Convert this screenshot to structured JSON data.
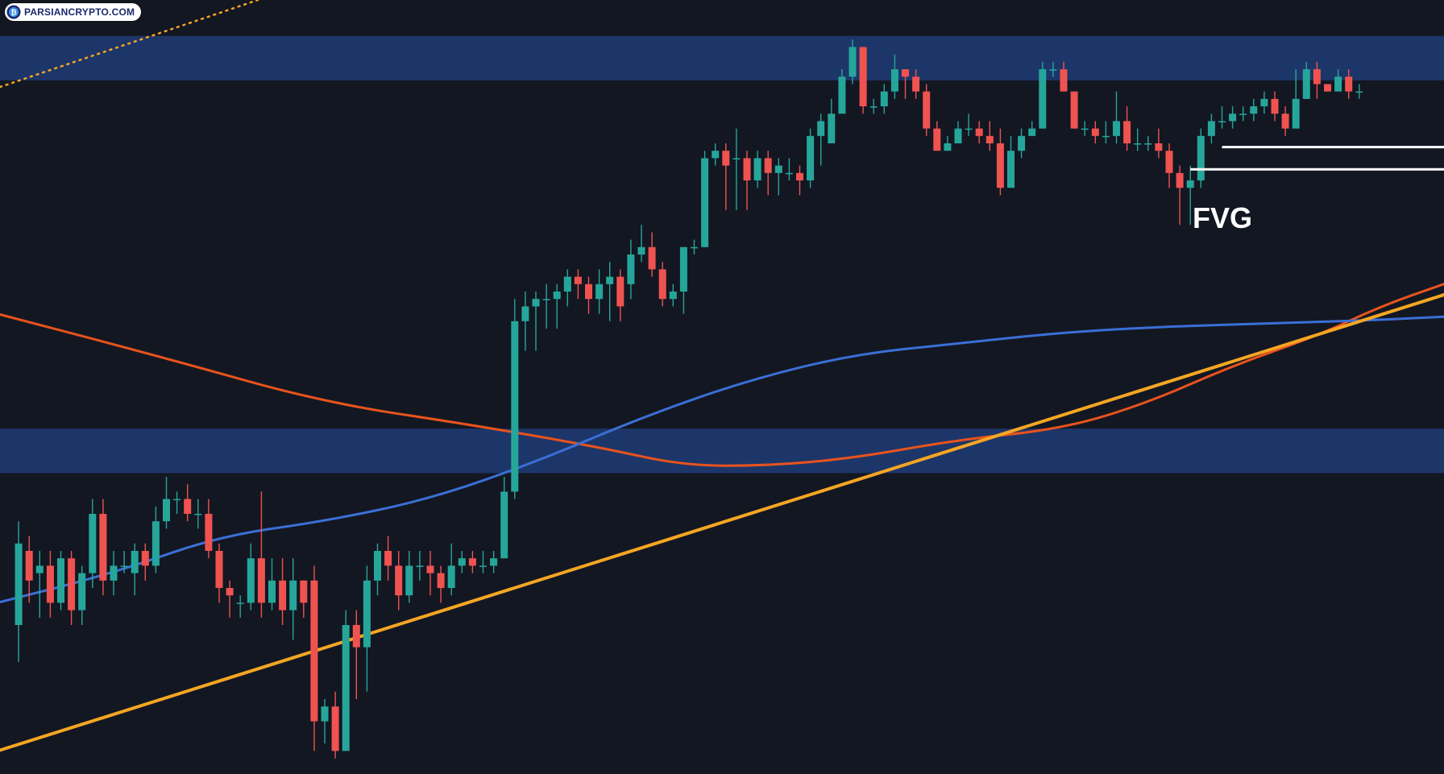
{
  "watermark": {
    "text": "PARSIANCRYPTO.COM"
  },
  "annotations": {
    "fvg_label": "FVG"
  },
  "colors": {
    "background": "#131722",
    "bull": "#26a69a",
    "bear": "#ef5350",
    "zone": "#1e3a70",
    "ema_blue": "#3b6fd6",
    "ema_red": "#e8531d",
    "trendline": "#f5a623",
    "fvg_lines": "#ffffff"
  },
  "chart_data": {
    "type": "candlestick",
    "title": "",
    "xlabel": "",
    "ylabel": "",
    "grid": false,
    "ylim": [
      0,
      100
    ],
    "candles": [
      [
        1,
        20,
        31,
        15,
        34
      ],
      [
        2,
        30,
        26,
        23,
        32
      ],
      [
        3,
        27,
        28,
        21,
        30
      ],
      [
        4,
        28,
        23,
        21,
        30
      ],
      [
        5,
        23,
        29,
        22,
        30
      ],
      [
        6,
        29,
        22,
        20,
        30
      ],
      [
        7,
        22,
        27,
        20,
        28
      ],
      [
        8,
        27,
        35,
        25,
        37
      ],
      [
        9,
        35,
        26,
        24,
        37
      ],
      [
        10,
        26,
        28,
        24,
        30
      ],
      [
        11,
        28,
        28,
        27,
        30
      ],
      [
        12,
        27,
        30,
        24,
        31
      ],
      [
        13,
        30,
        28,
        26,
        31
      ],
      [
        14,
        28,
        34,
        27,
        36
      ],
      [
        15,
        34,
        37,
        33,
        40
      ],
      [
        16,
        37,
        37,
        35,
        38
      ],
      [
        17,
        37,
        35,
        34,
        39
      ],
      [
        18,
        35,
        35,
        33,
        37
      ],
      [
        19,
        35,
        30,
        29,
        37
      ],
      [
        20,
        30,
        25,
        23,
        31
      ],
      [
        21,
        25,
        24,
        21,
        26
      ],
      [
        22,
        23,
        23,
        21,
        24
      ],
      [
        23,
        23,
        29,
        22,
        31
      ],
      [
        24,
        29,
        23,
        21,
        38
      ],
      [
        25,
        23,
        26,
        22,
        29
      ],
      [
        26,
        26,
        22,
        20,
        29
      ],
      [
        27,
        22,
        26,
        18,
        29
      ],
      [
        28,
        26,
        23,
        21,
        26
      ],
      [
        29,
        26,
        7,
        3,
        28
      ],
      [
        30,
        7,
        9,
        4,
        10
      ],
      [
        31,
        9,
        3,
        2,
        11
      ],
      [
        32,
        3,
        20,
        3,
        22
      ],
      [
        33,
        20,
        17,
        10,
        22
      ],
      [
        34,
        17,
        26,
        11,
        28
      ],
      [
        35,
        26,
        30,
        24,
        31
      ],
      [
        36,
        30,
        28,
        26,
        32
      ],
      [
        37,
        28,
        24,
        22,
        30
      ],
      [
        38,
        24,
        28,
        23,
        30
      ],
      [
        39,
        28,
        28,
        26,
        30
      ],
      [
        40,
        28,
        27,
        24,
        30
      ],
      [
        41,
        27,
        25,
        23,
        28
      ],
      [
        42,
        25,
        28,
        24,
        31
      ],
      [
        43,
        28,
        29,
        27,
        30
      ],
      [
        44,
        29,
        28,
        27,
        30
      ],
      [
        45,
        28,
        28,
        27,
        30
      ],
      [
        46,
        28,
        29,
        27,
        30
      ],
      [
        47,
        29,
        38,
        29,
        40
      ],
      [
        48,
        38,
        61,
        37,
        64
      ],
      [
        49,
        61,
        63,
        57,
        65
      ],
      [
        50,
        63,
        64,
        57,
        65
      ],
      [
        51,
        64,
        64,
        60,
        66
      ],
      [
        52,
        64,
        65,
        60,
        66
      ],
      [
        53,
        65,
        67,
        63,
        68
      ],
      [
        54,
        67,
        66,
        64,
        68
      ],
      [
        55,
        66,
        64,
        62,
        67
      ],
      [
        56,
        64,
        66,
        62,
        68
      ],
      [
        57,
        66,
        67,
        61,
        69
      ],
      [
        58,
        67,
        63,
        61,
        68
      ],
      [
        59,
        66,
        70,
        64,
        72
      ],
      [
        60,
        70,
        71,
        69,
        74
      ],
      [
        61,
        71,
        68,
        67,
        73
      ],
      [
        62,
        68,
        64,
        63,
        69
      ],
      [
        63,
        64,
        65,
        63,
        66
      ],
      [
        64,
        65,
        71,
        62,
        71
      ],
      [
        65,
        71,
        71,
        70,
        72
      ],
      [
        66,
        71,
        83,
        71,
        84
      ],
      [
        67,
        83,
        84,
        82,
        85
      ],
      [
        68,
        84,
        82,
        76,
        85
      ],
      [
        69,
        83,
        83,
        76,
        87
      ],
      [
        70,
        83,
        80,
        76,
        84
      ],
      [
        71,
        80,
        83,
        79,
        84
      ],
      [
        72,
        83,
        81,
        78,
        84
      ],
      [
        73,
        81,
        82,
        78,
        83
      ],
      [
        74,
        81,
        81,
        80,
        83
      ],
      [
        75,
        81,
        80,
        78,
        82
      ],
      [
        76,
        80,
        86,
        79,
        87
      ],
      [
        77,
        86,
        88,
        82,
        89
      ],
      [
        78,
        85,
        89,
        85,
        91
      ],
      [
        79,
        89,
        94,
        89,
        95
      ],
      [
        80,
        94,
        98,
        93,
        99
      ],
      [
        81,
        98,
        90,
        89,
        98
      ],
      [
        82,
        90,
        90,
        89,
        91
      ],
      [
        83,
        90,
        92,
        89,
        93
      ],
      [
        84,
        92,
        95,
        91,
        97
      ],
      [
        85,
        95,
        94,
        91,
        95
      ],
      [
        86,
        94,
        92,
        91,
        95
      ],
      [
        87,
        92,
        87,
        86,
        93
      ],
      [
        88,
        87,
        84,
        84,
        88
      ],
      [
        89,
        84,
        85,
        84,
        86
      ],
      [
        90,
        85,
        87,
        85,
        88
      ],
      [
        91,
        87,
        87,
        86,
        89
      ],
      [
        92,
        87,
        86,
        85,
        88
      ],
      [
        93,
        86,
        85,
        84,
        88
      ],
      [
        94,
        85,
        79,
        78,
        87
      ],
      [
        95,
        79,
        84,
        80,
        86
      ],
      [
        96,
        84,
        86,
        83,
        87
      ],
      [
        97,
        86,
        87,
        86,
        88
      ],
      [
        98,
        87,
        95,
        87,
        96
      ],
      [
        99,
        95,
        95,
        94,
        96
      ],
      [
        100,
        95,
        92,
        92,
        96
      ],
      [
        101,
        92,
        87,
        87,
        92
      ],
      [
        102,
        87,
        87,
        86,
        88
      ],
      [
        103,
        87,
        86,
        85,
        88
      ],
      [
        104,
        86,
        86,
        85,
        88
      ],
      [
        105,
        86,
        88,
        85,
        92
      ],
      [
        106,
        88,
        85,
        84,
        90
      ],
      [
        107,
        85,
        85,
        84,
        87
      ],
      [
        108,
        85,
        85,
        84,
        86
      ],
      [
        109,
        85,
        84,
        83,
        87
      ],
      [
        110,
        84,
        81,
        79,
        85
      ],
      [
        111,
        81,
        79,
        74,
        82
      ],
      [
        112,
        79,
        80,
        74,
        82
      ],
      [
        113,
        80,
        86,
        79,
        87
      ],
      [
        114,
        86,
        88,
        85,
        89
      ],
      [
        115,
        88,
        88,
        87,
        90
      ],
      [
        116,
        88,
        89,
        87,
        90
      ],
      [
        117,
        89,
        89,
        88,
        90
      ],
      [
        118,
        89,
        90,
        88,
        91
      ],
      [
        119,
        90,
        91,
        89,
        92
      ],
      [
        120,
        91,
        89,
        88,
        92
      ],
      [
        121,
        89,
        87,
        86,
        90
      ],
      [
        122,
        87,
        91,
        87,
        95
      ],
      [
        123,
        91,
        95,
        91,
        96
      ],
      [
        124,
        95,
        93,
        91,
        96
      ],
      [
        125,
        93,
        92,
        92,
        93
      ],
      [
        126,
        92,
        94,
        92,
        95
      ],
      [
        127,
        94,
        92,
        91,
        95
      ],
      [
        128,
        92,
        92,
        91,
        93
      ]
    ],
    "candle_fields": [
      "index",
      "open",
      "close",
      "low",
      "high"
    ],
    "zones": [
      {
        "from": 93.5,
        "to": 99.5
      },
      {
        "from": 40.5,
        "to": 46.5
      }
    ],
    "fvg": [
      {
        "from_index": 115,
        "to_index": 140,
        "price": 84.5
      },
      {
        "from_index": 112,
        "to_index": 140,
        "price": 81.5
      }
    ],
    "lines": [
      {
        "name": "",
        "points": [
          [
            -1,
            62
          ],
          [
            15,
            56
          ],
          [
            30,
            50
          ],
          [
            44,
            47
          ],
          [
            56,
            44
          ],
          [
            64,
            41.5
          ],
          [
            72,
            41.5
          ],
          [
            80,
            42.5
          ],
          [
            90,
            45
          ],
          [
            100,
            46.5
          ],
          [
            108,
            50
          ],
          [
            116,
            55
          ],
          [
            124,
            59
          ],
          [
            130,
            63
          ],
          [
            136,
            66
          ]
        ]
      },
      {
        "name": "",
        "points": [
          [
            -1,
            23
          ],
          [
            10,
            27
          ],
          [
            20,
            32
          ],
          [
            30,
            34
          ],
          [
            40,
            37
          ],
          [
            50,
            42
          ],
          [
            60,
            48
          ],
          [
            70,
            53
          ],
          [
            80,
            56.5
          ],
          [
            90,
            58
          ],
          [
            100,
            59.5
          ],
          [
            110,
            60.3
          ],
          [
            120,
            60.7
          ],
          [
            130,
            61.2
          ],
          [
            136,
            61.6
          ]
        ]
      },
      {
        "name": "",
        "points": [
          [
            -1,
            3
          ],
          [
            137,
            65
          ]
        ]
      }
    ]
  }
}
